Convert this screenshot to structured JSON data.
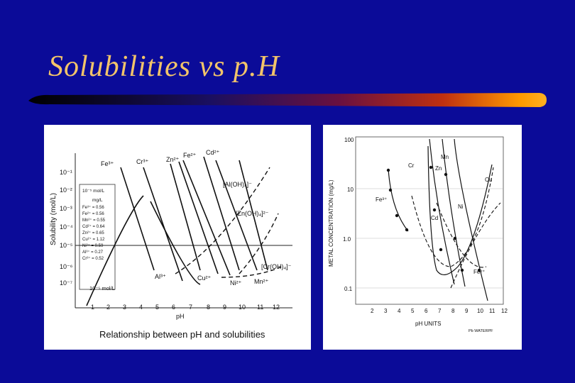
{
  "slide": {
    "title": "Solubilities  vs  p.H",
    "accent_color": "#f2c46a",
    "background_color": "#0b0b98"
  },
  "left_chart": {
    "caption": "Relationship between pH and solubilities",
    "ylabel": "Solubility (mol/L)",
    "xlabel": "pH",
    "y_ticks": [
      "10⁻¹",
      "10⁻²",
      "10⁻³",
      "10⁻⁴",
      "10⁻⁵",
      "10⁻⁶",
      "10⁻⁷"
    ],
    "x_ticks": [
      "1",
      "2",
      "3",
      "4",
      "5",
      "6",
      "7",
      "8",
      "9",
      "10",
      "11",
      "12"
    ],
    "legend_title": "10⁻⁵ mol/L",
    "legend_unit": "mg/L",
    "legend_items": [
      "Fe³⁺ = 0.56",
      "Fe²⁺ = 0.56",
      "Mn²⁺ = 0.55",
      "Cd²⁺ = 0.64",
      "Zn²⁺ = 0.65",
      "Cu²⁺ = 1.12",
      "Ni²⁺ = 0.59",
      "Al³⁺ = 0.27",
      "Cr³⁺ = 0.52"
    ],
    "annotations": {
      "fe3": "Fe³⁺",
      "cr3": "Cr³⁺",
      "zn2": "Zn²⁺",
      "fe2": "Fe²⁺",
      "cd2": "Cd²⁺",
      "aloh": "[Al(OH)₄]⁻",
      "znoh": "[Zn(OH)₄]²⁻",
      "croh": "[Cr(OH)₄]⁻",
      "al3": "Al³⁺",
      "cu2": "Cu²⁺",
      "ni2": "Ni²⁺",
      "mn2": "Mn²⁺",
      "ref": "10⁻⁵ mol/L"
    }
  },
  "right_chart": {
    "ylabel": "METAL CONCENTRATION (mg/L)",
    "xlabel": "pH UNITS",
    "y_ticks": [
      "100",
      "10",
      "1.0",
      "0.1"
    ],
    "x_ticks": [
      "2",
      "3",
      "4",
      "5",
      "6",
      "7",
      "8",
      "9",
      "10",
      "11",
      "12"
    ],
    "annotations": {
      "mn": "Mn",
      "cr": "Cr",
      "zn": "Zn",
      "cu": "Cu",
      "ni": "Ni",
      "cd": "Cd",
      "fe3": "Fe³⁺",
      "fe2": "Fe²⁺",
      "source": "Pb WATERPF"
    }
  }
}
